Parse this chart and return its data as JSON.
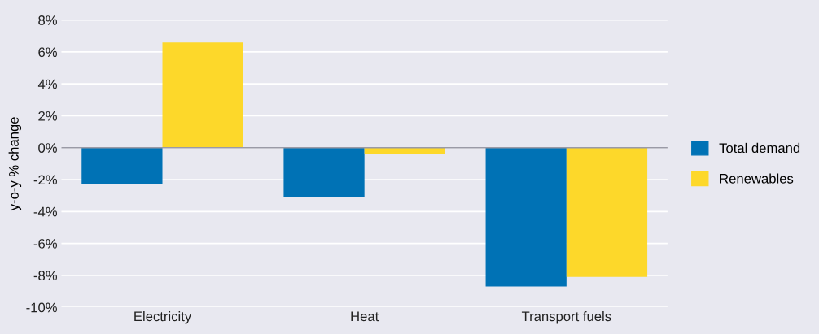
{
  "chart_data": {
    "type": "bar",
    "ylabel": "y-o-y % change",
    "categories": [
      "Electricity",
      "Heat",
      "Transport fuels"
    ],
    "series": [
      {
        "name": "Total demand",
        "color": "#0072b5",
        "values": [
          -2.3,
          -3.1,
          -8.7
        ]
      },
      {
        "name": "Renewables",
        "color": "#fdd82a",
        "values": [
          6.6,
          -0.4,
          -8.1
        ]
      }
    ],
    "ylim": [
      -10,
      8
    ],
    "yticks": [
      {
        "value": -10,
        "label": "-10%"
      },
      {
        "value": -8,
        "label": "-8%"
      },
      {
        "value": -6,
        "label": "-6%"
      },
      {
        "value": -4,
        "label": "-4%"
      },
      {
        "value": -2,
        "label": "-2%"
      },
      {
        "value": 0,
        "label": "0%"
      },
      {
        "value": 2,
        "label": "2%"
      },
      {
        "value": 4,
        "label": "4%"
      },
      {
        "value": 6,
        "label": "6%"
      },
      {
        "value": 8,
        "label": "8%"
      }
    ],
    "ref_lines": [
      {
        "axis": "y",
        "value": 0,
        "color": "#9a9aa6"
      }
    ],
    "grid": "y",
    "legend": "right"
  }
}
